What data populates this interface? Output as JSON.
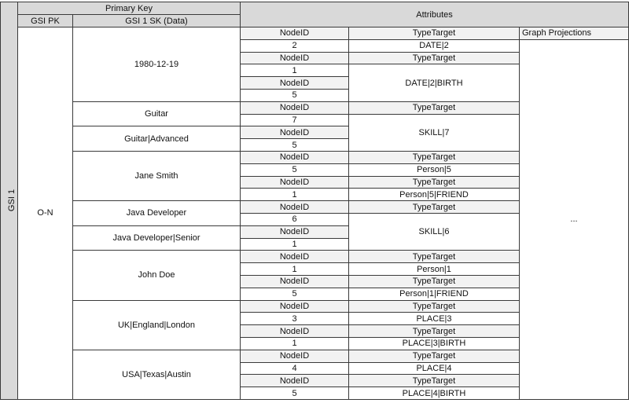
{
  "headers": {
    "primary_key": "Primary Key",
    "attributes": "Attributes",
    "gsi_pk": "GSI PK",
    "gsi_sk": "GSI 1 SK (Data)",
    "graph_projections": "Graph Projections"
  },
  "index_name": "GSI 1",
  "pk_value": "O-N",
  "projections_value": "...",
  "colors": {
    "header_bg": "#d9d9d9",
    "subheader_bg": "#f2f2f2",
    "border": "#3a3a3a"
  },
  "groups": [
    {
      "sk": "1980-12-19",
      "rows": [
        {
          "node": "NodeID",
          "type": "TypeTarget"
        },
        {
          "node": "2",
          "type": "DATE|2"
        },
        {
          "node": "NodeID",
          "type": "TypeTarget"
        },
        {
          "node": "1",
          "type": "DATE|2|BIRTH"
        },
        {
          "node": "NodeID",
          "type": null
        },
        {
          "node": "5",
          "type": null
        }
      ]
    },
    {
      "sk": "Guitar",
      "rows": [
        {
          "node": "NodeID",
          "type": "TypeTarget"
        },
        {
          "node": "7",
          "type": "SKILL|7"
        }
      ]
    },
    {
      "sk": "Guitar|Advanced",
      "rows": [
        {
          "node": "NodeID",
          "type": null
        },
        {
          "node": "5",
          "type": null
        }
      ]
    },
    {
      "sk": "Jane Smith",
      "rows": [
        {
          "node": "NodeID",
          "type": "TypeTarget"
        },
        {
          "node": "5",
          "type": "Person|5"
        },
        {
          "node": "NodeID",
          "type": "TypeTarget"
        },
        {
          "node": "1",
          "type": "Person|5|FRIEND"
        }
      ]
    },
    {
      "sk": "Java Developer",
      "rows": [
        {
          "node": "NodeID",
          "type": "TypeTarget"
        },
        {
          "node": "6",
          "type": "SKILL|6"
        }
      ]
    },
    {
      "sk": "Java Developer|Senior",
      "rows": [
        {
          "node": "NodeID",
          "type": null
        },
        {
          "node": "1",
          "type": null
        }
      ]
    },
    {
      "sk": "John Doe",
      "rows": [
        {
          "node": "NodeID",
          "type": "TypeTarget"
        },
        {
          "node": "1",
          "type": "Person|1"
        },
        {
          "node": "NodeID",
          "type": "TypeTarget"
        },
        {
          "node": "5",
          "type": "Person|1|FRIEND"
        }
      ]
    },
    {
      "sk": "UK|England|London",
      "rows": [
        {
          "node": "NodeID",
          "type": "TypeTarget"
        },
        {
          "node": "3",
          "type": "PLACE|3"
        },
        {
          "node": "NodeID",
          "type": "TypeTarget"
        },
        {
          "node": "1",
          "type": "PLACE|3|BIRTH"
        }
      ]
    },
    {
      "sk": "USA|Texas|Austin",
      "rows": [
        {
          "node": "NodeID",
          "type": "TypeTarget"
        },
        {
          "node": "4",
          "type": "PLACE|4"
        },
        {
          "node": "NodeID",
          "type": "TypeTarget"
        },
        {
          "node": "5",
          "type": "PLACE|4|BIRTH"
        }
      ]
    }
  ]
}
